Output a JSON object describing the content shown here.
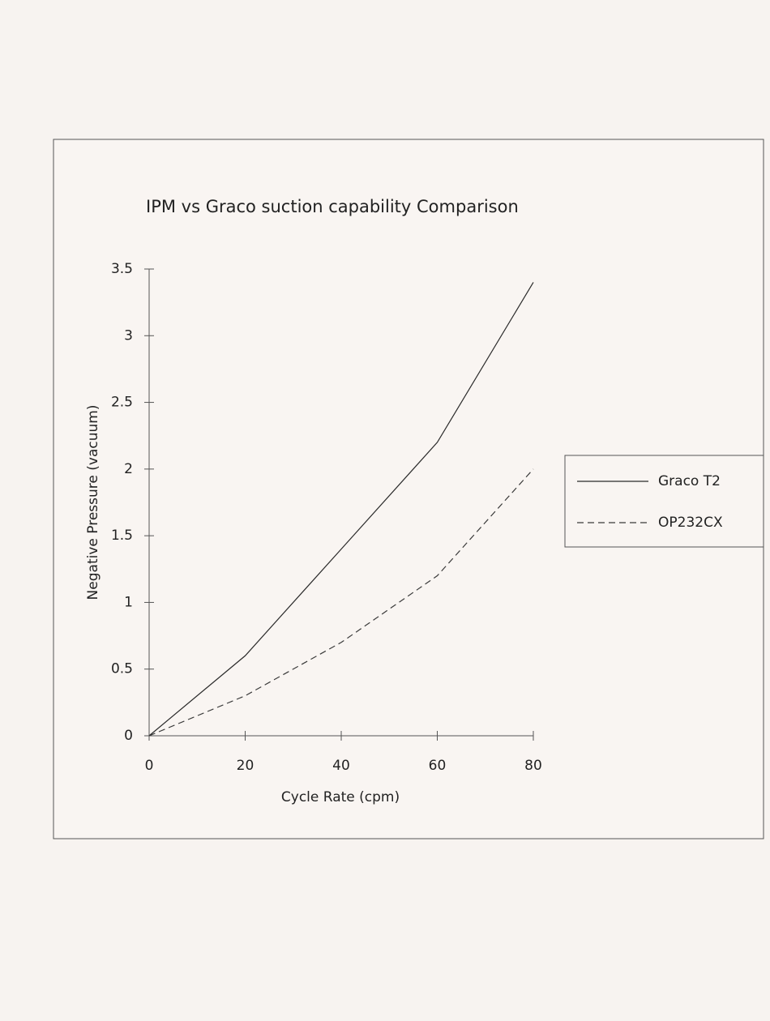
{
  "chart_data": {
    "type": "line",
    "title": "IPM vs Graco suction capability Comparison",
    "x_label": "Cycle Rate (cpm)",
    "y_label": "Negative Pressure (vacuum)",
    "x": [
      0,
      20,
      40,
      60,
      80
    ],
    "series": [
      {
        "name": "Graco T2",
        "color": "#2a2a2a",
        "line_style": "solid",
        "values": [
          0,
          0.6,
          1.4,
          2.2,
          3.4
        ]
      },
      {
        "name": "OP232CX",
        "color": "#3a3a3a",
        "line_style": "dashed",
        "values": [
          0,
          0.3,
          0.7,
          1.2,
          2.0
        ]
      }
    ],
    "xlim": [
      0,
      80
    ],
    "xticks": [
      0,
      20,
      40,
      60,
      80
    ],
    "ylim": [
      0,
      3.5
    ],
    "yticks": [
      0,
      0.5,
      1,
      1.5,
      2,
      2.5,
      3,
      3.5
    ],
    "grid": false,
    "legend": "right"
  }
}
